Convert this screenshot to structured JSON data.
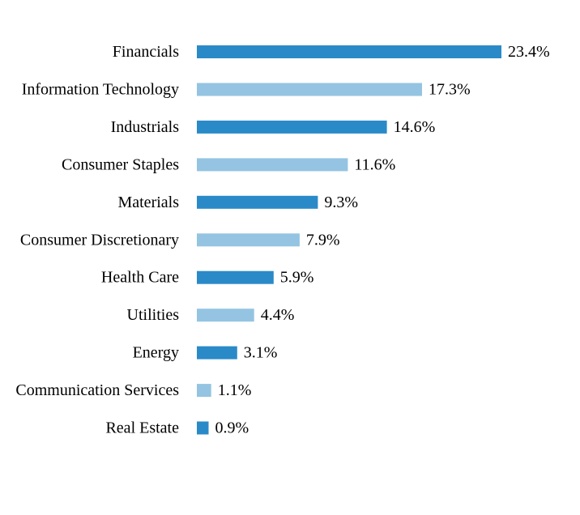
{
  "chart_data": {
    "type": "bar",
    "orientation": "horizontal",
    "categories": [
      "Financials",
      "Information Technology",
      "Industrials",
      "Consumer Staples",
      "Materials",
      "Consumer Discretionary",
      "Health Care",
      "Utilities",
      "Energy",
      "Communication Services",
      "Real Estate"
    ],
    "values": [
      23.4,
      17.3,
      14.6,
      11.6,
      9.3,
      7.9,
      5.9,
      4.4,
      3.1,
      1.1,
      0.9
    ],
    "value_labels": [
      "23.4%",
      "17.3%",
      "14.6%",
      "11.6%",
      "9.3%",
      "7.9%",
      "5.9%",
      "4.4%",
      "3.1%",
      "1.1%",
      "0.9%"
    ],
    "value_unit": "%",
    "xlim": [
      0,
      23.4
    ],
    "grid": false,
    "legend": "none",
    "colors": [
      "#2a8ac8",
      "#94c4e2"
    ]
  }
}
